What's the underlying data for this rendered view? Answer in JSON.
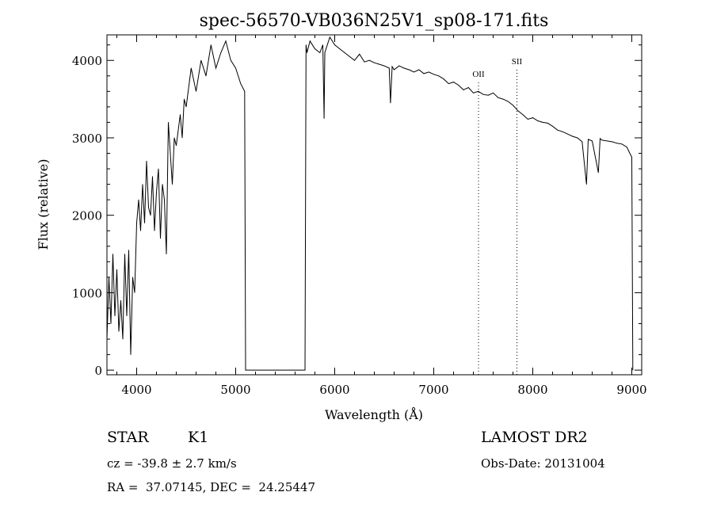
{
  "chart_data": {
    "type": "line",
    "title": "spec-56570-VB036N25V1_sp08-171.fits",
    "xlabel": "Wavelength (Å)",
    "ylabel": "Flux (relative)",
    "xlim": [
      3700,
      9100
    ],
    "ylim": [
      -60,
      4330
    ],
    "xticks": [
      "4000",
      "5000",
      "6000",
      "7000",
      "8000",
      "9000"
    ],
    "yticks": [
      "0",
      "1000",
      "2000",
      "3000",
      "4000"
    ],
    "grid": false,
    "legend": "none",
    "series": [
      {
        "x": [
          3700,
          3720,
          3740,
          3760,
          3780,
          3800,
          3820,
          3840,
          3860,
          3880,
          3900,
          3920,
          3940,
          3960,
          3980,
          4000,
          4020,
          4040,
          4060,
          4080,
          4100,
          4120,
          4140,
          4160,
          4180,
          4200,
          4220,
          4240,
          4260,
          4280,
          4300,
          4320,
          4340,
          4360,
          4380,
          4400,
          4420,
          4440,
          4460,
          4480,
          4500,
          4550,
          4600,
          4650,
          4700,
          4750,
          4800,
          4850,
          4900,
          4950,
          5000,
          5050,
          5090,
          5100,
          5110,
          5700,
          5710,
          5720,
          5750,
          5800,
          5850,
          5880,
          5893,
          5900,
          5950,
          6000,
          6050,
          6100,
          6150,
          6200,
          6250,
          6300,
          6350,
          6400,
          6450,
          6500,
          6550,
          6563,
          6580,
          6600,
          6650,
          6700,
          6750,
          6800,
          6850,
          6900,
          6950,
          7000,
          7050,
          7100,
          7150,
          7200,
          7250,
          7300,
          7350,
          7400,
          7450,
          7500,
          7550,
          7600,
          7650,
          7700,
          7750,
          7800,
          7850,
          7900,
          7950,
          8000,
          8050,
          8100,
          8150,
          8200,
          8250,
          8300,
          8350,
          8400,
          8450,
          8498,
          8542,
          8560,
          8600,
          8662,
          8680,
          8700,
          8750,
          8800,
          8850,
          8900,
          8950,
          8980,
          9000,
          9010
        ],
        "y": [
          400,
          1200,
          600,
          1500,
          700,
          1300,
          500,
          900,
          400,
          1500,
          700,
          1550,
          200,
          1200,
          1000,
          1900,
          2200,
          1800,
          2400,
          1900,
          2700,
          2100,
          2000,
          2500,
          1800,
          2300,
          2600,
          1700,
          2400,
          2200,
          1500,
          3200,
          2800,
          2400,
          3000,
          2900,
          3100,
          3300,
          3000,
          3500,
          3400,
          3900,
          3600,
          4000,
          3800,
          4200,
          3900,
          4100,
          4250,
          4000,
          3900,
          3700,
          3600,
          0,
          0,
          0,
          4200,
          4100,
          4250,
          4150,
          4100,
          4200,
          3250,
          4100,
          4300,
          4200,
          4150,
          4100,
          4050,
          4000,
          4080,
          3980,
          4000,
          3970,
          3950,
          3930,
          3900,
          3450,
          3920,
          3880,
          3930,
          3900,
          3880,
          3850,
          3880,
          3830,
          3850,
          3820,
          3800,
          3760,
          3700,
          3720,
          3680,
          3620,
          3650,
          3580,
          3600,
          3560,
          3550,
          3580,
          3520,
          3500,
          3470,
          3420,
          3350,
          3300,
          3240,
          3260,
          3220,
          3200,
          3190,
          3150,
          3100,
          3080,
          3050,
          3020,
          3000,
          2950,
          2400,
          2980,
          2960,
          2550,
          2990,
          2970,
          2960,
          2950,
          2930,
          2920,
          2880,
          2800,
          2750,
          0
        ]
      }
    ],
    "annotations": [
      {
        "label": "OII",
        "x": 7452
      },
      {
        "label": "SII",
        "x": 7840
      }
    ]
  },
  "footer": {
    "object_class": "STAR",
    "subclass": "K1",
    "survey": "LAMOST DR2",
    "redshift": "cz = -39.8 ± 2.7 km/s",
    "obs_date": "Obs-Date: 20131004",
    "coords": "RA =  37.07145, DEC =  24.25447"
  }
}
